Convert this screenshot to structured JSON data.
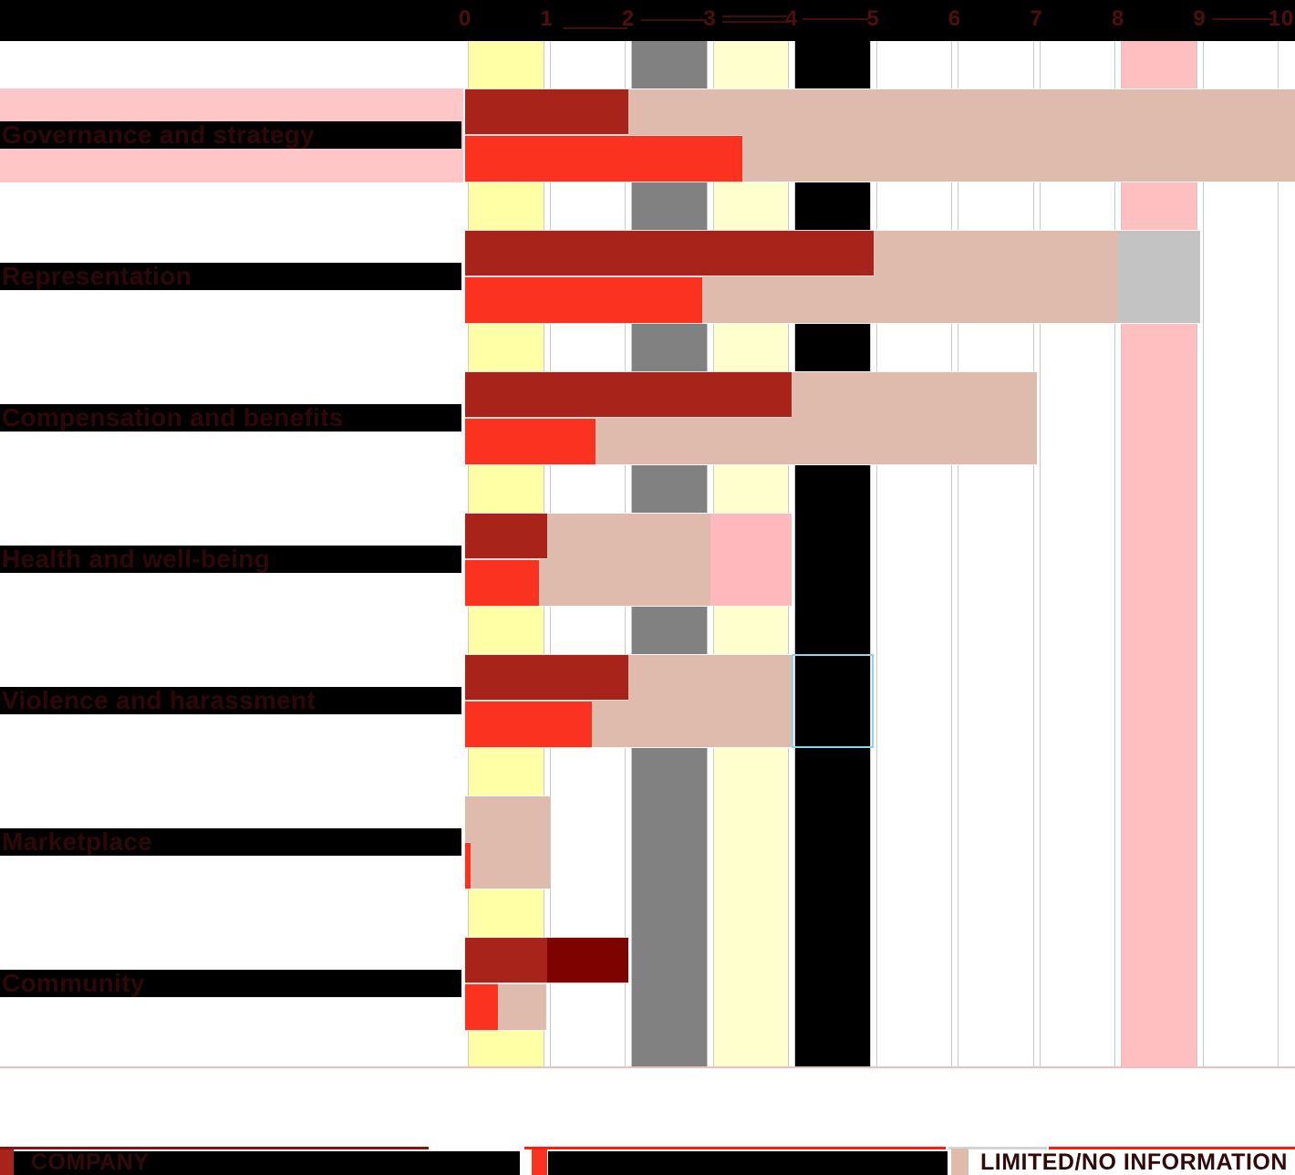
{
  "axis": {
    "tick_labels": [
      "0",
      "1",
      "2",
      "3",
      "4",
      "5",
      "6",
      "7",
      "8",
      "9",
      "10"
    ],
    "min": 0,
    "max": 10
  },
  "colors": {
    "dark_red": "#A8231A",
    "darkest_red": "#7D0200",
    "bright_red": "#FB3220",
    "tan": "#DFBBAD",
    "silver": "#C3C3C3",
    "pink_block": "#FFB9BD",
    "pink_band": "#FFBEC0",
    "strip_pink": "#FFC6C8",
    "yellow_band": "#FFFFA5",
    "pale_yellow_band": "#FFFFCE",
    "gray_band": "#818181",
    "black": "#000000",
    "white": "#FFFFFF",
    "skyblue_outline": "#8FD4EC",
    "label_text": "#2E0808",
    "axis_text": "#4E0E0E"
  },
  "chart_data": {
    "type": "bar",
    "orientation": "horizontal",
    "title": "",
    "xlabel": "",
    "ylabel": "",
    "x_axis": {
      "min": 0,
      "max": 10,
      "ticks": [
        0,
        1,
        2,
        3,
        4,
        5,
        6,
        7,
        8,
        9,
        10
      ]
    },
    "grid": "vertical color bands per unit",
    "legend_position": "bottom",
    "categories": [
      "Governance and strategy",
      "Representation",
      "Compensation and benefits",
      "Health and well-being",
      "Violence and harassment",
      "Marketplace",
      "Community"
    ],
    "series": [
      {
        "name": "COMPANY",
        "color": "dark_red",
        "values": [
          2.0,
          5.0,
          4.0,
          1.0,
          2.0,
          0,
          2.0
        ]
      },
      {
        "name": "",
        "color": "bright_red",
        "values": [
          3.4,
          2.9,
          1.6,
          0.9,
          1.55,
          0.07,
          0.4
        ]
      },
      {
        "name": "LIMITED/NO INFORMATION",
        "color": "tan",
        "values": [
          10,
          8,
          7,
          3,
          4,
          1,
          1
        ]
      }
    ],
    "extra_blocks": [
      {
        "category": "Representation",
        "from": 8,
        "to": 9,
        "color": "silver"
      },
      {
        "category": "Health and well-being",
        "from": 3,
        "to": 4,
        "color": "pink_block"
      },
      {
        "category": "Violence and harassment",
        "from": 4,
        "to": 5,
        "color": "skyblue_outline_box"
      }
    ],
    "column_bands": [
      "yellow_band",
      "white",
      "gray_band",
      "pale_yellow_band",
      "black",
      "white",
      "white",
      "white",
      "pink_band",
      "white"
    ],
    "rows": [
      {
        "label": "Governance and strategy",
        "label_strip": true,
        "blocks": [
          {
            "color": "tan",
            "from": 0,
            "to": 10.17
          }
        ],
        "top": [
          {
            "color": "dark_red",
            "from": 0,
            "to": 2.0
          }
        ],
        "bottom": [
          {
            "color": "bright_red",
            "from": 0,
            "to": 3.4
          }
        ]
      },
      {
        "label": "Representation",
        "label_strip": false,
        "blocks": [
          {
            "color": "tan",
            "from": 0,
            "to": 8.0
          },
          {
            "color": "silver",
            "from": 8.0,
            "to": 9.0
          }
        ],
        "top": [
          {
            "color": "dark_red",
            "from": 0,
            "to": 5.0
          }
        ],
        "bottom": [
          {
            "color": "bright_red",
            "from": 0,
            "to": 2.9
          }
        ]
      },
      {
        "label": "Compensation and benefits",
        "label_strip": false,
        "blocks": [
          {
            "color": "tan",
            "from": 0,
            "to": 7.0
          }
        ],
        "top": [
          {
            "color": "dark_red",
            "from": 0,
            "to": 4.0
          }
        ],
        "bottom": [
          {
            "color": "bright_red",
            "from": 0,
            "to": 1.6
          }
        ]
      },
      {
        "label": "Health and well-being",
        "label_strip": false,
        "blocks": [
          {
            "color": "tan",
            "from": 0,
            "to": 3.0
          },
          {
            "color": "pink_block",
            "from": 3.0,
            "to": 4.0
          }
        ],
        "top": [
          {
            "color": "dark_red",
            "from": 0,
            "to": 1.0
          }
        ],
        "bottom": [
          {
            "color": "bright_red",
            "from": 0,
            "to": 0.9
          }
        ]
      },
      {
        "label": "Violence and harassment",
        "label_strip": false,
        "blocks": [
          {
            "color": "tan",
            "from": 0,
            "to": 4.0
          },
          {
            "color": "outline_skyblue",
            "from": 4.0,
            "to": 5.0
          }
        ],
        "top": [
          {
            "color": "dark_red",
            "from": 0,
            "to": 2.0
          }
        ],
        "bottom": [
          {
            "color": "bright_red",
            "from": 0,
            "to": 1.55
          }
        ]
      },
      {
        "label": "Marketplace",
        "label_strip": false,
        "blocks": [
          {
            "color": "tan",
            "from": 0,
            "to": 1.04
          }
        ],
        "top": [],
        "bottom": [
          {
            "color": "bright_red",
            "from": 0,
            "to": 0.07
          }
        ]
      },
      {
        "label": "Community",
        "label_strip": false,
        "blocks": [],
        "top": [
          {
            "color": "dark_red",
            "from": 0,
            "to": 1.0
          },
          {
            "color": "darkest_red",
            "from": 1.0,
            "to": 2.0
          }
        ],
        "bottom": [
          {
            "color": "bright_red",
            "from": 0,
            "to": 0.4
          },
          {
            "color": "tan",
            "from": 0.4,
            "to": 1.0
          }
        ]
      }
    ]
  },
  "legend": {
    "items": [
      {
        "label": "COMPANY",
        "swatch": "dark_red",
        "black_band": true
      },
      {
        "label": "",
        "swatch": "bright_red",
        "black_band": true
      },
      {
        "label": "LIMITED/NO INFORMATION",
        "swatch": "tan",
        "black_band": false
      }
    ]
  }
}
